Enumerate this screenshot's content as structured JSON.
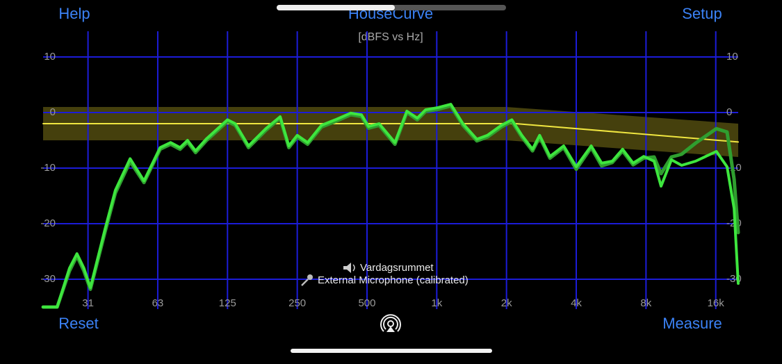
{
  "header": {
    "left": "Help",
    "title": "HouseCurve",
    "right": "Setup"
  },
  "footer": {
    "left": "Reset",
    "right": "Measure"
  },
  "info": {
    "speaker": "Vardagsrummet",
    "microphone": "External Microphone (calibrated)"
  },
  "chart_data": {
    "type": "line",
    "subtitle": "[dBFS vs Hz]",
    "xscale": "log",
    "grid": true,
    "xlim": [
      20,
      20000
    ],
    "ylim": [
      -35,
      15
    ],
    "xticks": [
      {
        "value": 31.25,
        "label": "31"
      },
      {
        "value": 62.5,
        "label": "63"
      },
      125,
      250,
      500,
      {
        "value": 1000,
        "label": "1k"
      },
      {
        "value": 2000,
        "label": "2k"
      },
      {
        "value": 4000,
        "label": "4k"
      },
      {
        "value": 8000,
        "label": "8k"
      },
      {
        "value": 16000,
        "label": "16k"
      }
    ],
    "yticks": [
      -30,
      -20,
      -10,
      0,
      10
    ],
    "band": {
      "color": "#5c5612",
      "x": [
        20,
        2000,
        20000
      ],
      "upper": [
        1,
        1,
        -2
      ],
      "lower": [
        -5,
        -5,
        -8
      ]
    },
    "x": [
      20,
      23,
      26,
      28,
      30,
      32,
      37,
      41,
      47.5,
      54.5,
      64,
      71,
      78,
      84,
      91,
      101,
      125,
      135,
      154,
      183,
      211,
      230,
      250,
      277,
      318,
      365,
      425,
      473,
      508,
      564,
      660,
      743,
      824,
      895,
      1015,
      1150,
      1297,
      1490,
      1655,
      1900,
      2110,
      2330,
      2590,
      2780,
      3080,
      3530,
      4000,
      4640,
      5150,
      5720,
      6340,
      7040,
      7820,
      8670,
      9290,
      10300,
      11400,
      13100,
      16100,
      17900,
      19200,
      20000
    ],
    "series": [
      {
        "color": "#2f9e2f",
        "values": [
          -35,
          -35,
          -28.5,
          -25.8,
          -28.5,
          -31.8,
          -21.5,
          -14.5,
          -8.8,
          -12.6,
          -6.6,
          -5.7,
          -6.6,
          -5.3,
          -7.2,
          -5.1,
          -1.6,
          -2.3,
          -6.3,
          -3.2,
          -1,
          -6.3,
          -4.4,
          -5.7,
          -2.6,
          -1.6,
          -0.4,
          -0.7,
          -2.8,
          -2.3,
          -5.7,
          0,
          -1.3,
          0.2,
          0.6,
          1.2,
          -2.3,
          -5.1,
          -4.4,
          -2.6,
          -1.6,
          -4.4,
          -6.9,
          -4.4,
          -8.2,
          -6.3,
          -10.2,
          -6.3,
          -9.6,
          -9,
          -6.9,
          -9.4,
          -8.2,
          -8,
          -11,
          -8,
          -7.5,
          -5.5,
          -2.9,
          -3.5,
          -12,
          -21.6
        ]
      },
      {
        "color": "#3ee63e",
        "values": [
          -35,
          -35,
          -28,
          -25.4,
          -28,
          -31.5,
          -21,
          -14,
          -8.3,
          -12.3,
          -6.3,
          -5.4,
          -6.3,
          -5,
          -6.9,
          -4.8,
          -1.3,
          -2,
          -6,
          -2.9,
          -0.75,
          -6,
          -4.1,
          -5.4,
          -2.3,
          -1.3,
          -0.1,
          -0.4,
          -2.5,
          -2,
          -5.4,
          0.25,
          -1,
          0.5,
          0.9,
          1.5,
          -2,
          -4.8,
          -4.1,
          -2.3,
          -1.3,
          -4.1,
          -6.6,
          -4.1,
          -7.9,
          -6,
          -9.75,
          -6,
          -9.1,
          -8.75,
          -6.6,
          -9.1,
          -7.9,
          -8.75,
          -13.25,
          -8.5,
          -9.5,
          -8.75,
          -7,
          -9.75,
          -17.25,
          -30.75
        ]
      }
    ],
    "target": {
      "color": "#f0e640",
      "x": [
        20,
        2200,
        20000
      ],
      "values": [
        -2,
        -2,
        -5.3
      ]
    }
  }
}
